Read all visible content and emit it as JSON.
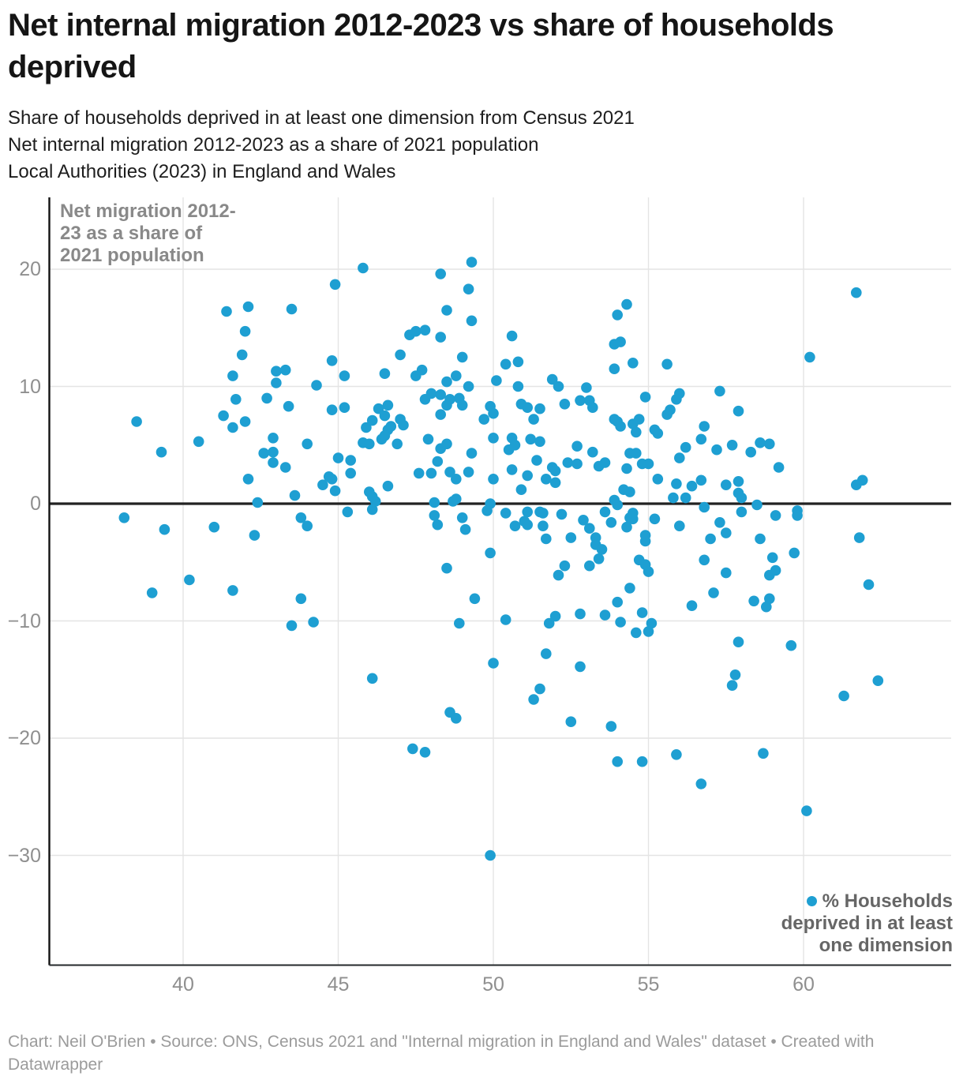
{
  "header": {
    "title": "Net internal migration 2012-2023 vs share of households deprived",
    "subtitle_lines": [
      "Share of households deprived in at least one dimension from Census 2021",
      "Net internal migration 2012-2023 as a share of 2021 population",
      "Local Authorities (2023) in England and Wales"
    ]
  },
  "chart_data": {
    "type": "scatter",
    "title": "Net internal migration 2012-2023 vs share of households deprived",
    "xlabel": "% Households deprived in at least one dimension",
    "ylabel": "Net migration 2012-23 as a share of 2021 population",
    "x_ticks": [
      40,
      45,
      50,
      55,
      60
    ],
    "y_ticks": [
      20,
      10,
      0,
      -10,
      -20,
      -30
    ],
    "xlim": [
      35.7,
      64.7
    ],
    "ylim": [
      -39.5,
      26.2
    ],
    "grid": true,
    "zero_line": true,
    "annotation_lines": [
      "Net migration 2012-",
      "23 as a share of",
      "2021 population"
    ],
    "legend": {
      "position": "bottom-right",
      "label_lines": [
        "% Households",
        "deprived in at least",
        "one dimension"
      ]
    },
    "point_color": "#1e9fd2",
    "points": [
      [
        41.4,
        16.4
      ],
      [
        42.1,
        16.8
      ],
      [
        42.0,
        14.7
      ],
      [
        41.9,
        12.7
      ],
      [
        41.6,
        10.9
      ],
      [
        45.8,
        20.1
      ],
      [
        48.3,
        19.6
      ],
      [
        49.3,
        20.6
      ],
      [
        44.9,
        18.7
      ],
      [
        49.2,
        18.3
      ],
      [
        43.5,
        16.6
      ],
      [
        48.5,
        16.5
      ],
      [
        49.3,
        15.6
      ],
      [
        47.3,
        14.4
      ],
      [
        47.5,
        14.7
      ],
      [
        47.8,
        14.8
      ],
      [
        48.3,
        14.2
      ],
      [
        47.0,
        12.7
      ],
      [
        49.0,
        12.5
      ],
      [
        44.8,
        12.2
      ],
      [
        43.3,
        11.4
      ],
      [
        43.0,
        11.3
      ],
      [
        47.7,
        11.4
      ],
      [
        47.5,
        10.9
      ],
      [
        46.5,
        11.1
      ],
      [
        45.2,
        10.9
      ],
      [
        48.8,
        10.9
      ],
      [
        43.0,
        10.3
      ],
      [
        44.3,
        10.1
      ],
      [
        48.5,
        10.4
      ],
      [
        49.2,
        10.0
      ],
      [
        54.3,
        17.0
      ],
      [
        54.0,
        16.1
      ],
      [
        50.6,
        14.3
      ],
      [
        53.9,
        13.6
      ],
      [
        54.1,
        13.8
      ],
      [
        50.4,
        11.9
      ],
      [
        50.8,
        12.1
      ],
      [
        53.9,
        11.5
      ],
      [
        54.5,
        12.0
      ],
      [
        55.6,
        11.9
      ],
      [
        51.9,
        10.6
      ],
      [
        50.8,
        10.0
      ],
      [
        52.1,
        10.0
      ],
      [
        53.0,
        9.9
      ],
      [
        50.1,
        10.5
      ],
      [
        61.7,
        18.0
      ],
      [
        60.2,
        12.5
      ],
      [
        57.3,
        9.6
      ],
      [
        38.5,
        7.0
      ],
      [
        39.3,
        4.4
      ],
      [
        40.5,
        5.3
      ],
      [
        41.7,
        8.9
      ],
      [
        41.3,
        7.5
      ],
      [
        42.0,
        7.0
      ],
      [
        41.6,
        6.5
      ],
      [
        42.7,
        9.0
      ],
      [
        42.9,
        5.6
      ],
      [
        42.6,
        4.3
      ],
      [
        42.9,
        4.4
      ],
      [
        42.9,
        3.5
      ],
      [
        42.1,
        2.1
      ],
      [
        42.4,
        0.1
      ],
      [
        38.1,
        -1.2
      ],
      [
        39.4,
        -2.2
      ],
      [
        41.0,
        -2.0
      ],
      [
        42.3,
        -2.7
      ],
      [
        40.2,
        -6.5
      ],
      [
        43.4,
        8.3
      ],
      [
        44.8,
        8.0
      ],
      [
        45.2,
        8.2
      ],
      [
        43.3,
        3.1
      ],
      [
        44.0,
        5.1
      ],
      [
        45.9,
        6.5
      ],
      [
        46.1,
        7.1
      ],
      [
        45.8,
        5.2
      ],
      [
        46.0,
        5.1
      ],
      [
        46.3,
        8.1
      ],
      [
        46.6,
        8.4
      ],
      [
        46.5,
        7.5
      ],
      [
        46.6,
        6.3
      ],
      [
        46.7,
        6.6
      ],
      [
        46.4,
        5.5
      ],
      [
        46.5,
        5.8
      ],
      [
        47.0,
        7.2
      ],
      [
        47.1,
        6.7
      ],
      [
        46.9,
        5.1
      ],
      [
        47.8,
        8.9
      ],
      [
        48.0,
        9.4
      ],
      [
        48.3,
        9.3
      ],
      [
        48.5,
        8.4
      ],
      [
        48.6,
        8.9
      ],
      [
        48.3,
        7.6
      ],
      [
        48.9,
        9.0
      ],
      [
        49.0,
        8.4
      ],
      [
        47.9,
        5.5
      ],
      [
        48.3,
        4.7
      ],
      [
        48.5,
        5.1
      ],
      [
        49.3,
        4.3
      ],
      [
        48.2,
        3.6
      ],
      [
        47.6,
        2.6
      ],
      [
        48.0,
        2.6
      ],
      [
        48.6,
        2.7
      ],
      [
        48.8,
        2.1
      ],
      [
        49.2,
        2.7
      ],
      [
        46.6,
        1.5
      ],
      [
        46.0,
        1.0
      ],
      [
        46.1,
        0.6
      ],
      [
        46.2,
        0.2
      ],
      [
        43.6,
        0.7
      ],
      [
        44.5,
        1.6
      ],
      [
        44.7,
        2.3
      ],
      [
        44.8,
        2.1
      ],
      [
        44.9,
        1.1
      ],
      [
        45.0,
        3.9
      ],
      [
        45.4,
        3.7
      ],
      [
        45.4,
        2.6
      ],
      [
        48.1,
        0.1
      ],
      [
        48.7,
        0.2
      ],
      [
        48.8,
        0.4
      ],
      [
        49.9,
        0.0
      ],
      [
        45.3,
        -0.7
      ],
      [
        46.1,
        -0.5
      ],
      [
        43.8,
        -1.2
      ],
      [
        44.0,
        -1.9
      ],
      [
        48.1,
        -1.0
      ],
      [
        48.2,
        -1.8
      ],
      [
        49.0,
        -1.2
      ],
      [
        49.1,
        -2.2
      ],
      [
        49.8,
        -0.6
      ],
      [
        49.9,
        -4.2
      ],
      [
        48.5,
        -5.5
      ],
      [
        49.9,
        8.3
      ],
      [
        50.0,
        7.7
      ],
      [
        50.0,
        5.6
      ],
      [
        49.7,
        7.2
      ],
      [
        50.0,
        2.1
      ],
      [
        54.9,
        9.1
      ],
      [
        56.0,
        9.4
      ],
      [
        55.9,
        8.9
      ],
      [
        50.9,
        8.5
      ],
      [
        51.1,
        8.2
      ],
      [
        51.5,
        8.1
      ],
      [
        52.3,
        8.5
      ],
      [
        52.8,
        8.8
      ],
      [
        53.1,
        8.8
      ],
      [
        53.2,
        8.2
      ],
      [
        51.3,
        7.2
      ],
      [
        53.9,
        7.2
      ],
      [
        54.0,
        7.0
      ],
      [
        54.1,
        6.6
      ],
      [
        54.5,
        6.8
      ],
      [
        54.7,
        7.2
      ],
      [
        54.6,
        6.1
      ],
      [
        55.2,
        6.3
      ],
      [
        55.3,
        6.0
      ],
      [
        55.6,
        7.6
      ],
      [
        55.7,
        8.0
      ],
      [
        50.6,
        5.6
      ],
      [
        50.7,
        5.0
      ],
      [
        50.5,
        4.6
      ],
      [
        51.2,
        5.5
      ],
      [
        51.5,
        5.3
      ],
      [
        51.4,
        3.7
      ],
      [
        52.7,
        4.9
      ],
      [
        53.2,
        4.4
      ],
      [
        52.4,
        3.5
      ],
      [
        52.7,
        3.4
      ],
      [
        51.9,
        3.1
      ],
      [
        52.0,
        2.8
      ],
      [
        53.4,
        3.2
      ],
      [
        53.6,
        3.5
      ],
      [
        50.6,
        2.9
      ],
      [
        51.1,
        2.4
      ],
      [
        51.7,
        2.1
      ],
      [
        52.0,
        1.8
      ],
      [
        50.9,
        1.2
      ],
      [
        54.3,
        3.0
      ],
      [
        54.4,
        4.3
      ],
      [
        54.6,
        4.3
      ],
      [
        54.8,
        3.4
      ],
      [
        55.0,
        3.4
      ],
      [
        54.2,
        1.2
      ],
      [
        54.4,
        1.0
      ],
      [
        53.9,
        0.3
      ],
      [
        54.0,
        -0.1
      ],
      [
        55.3,
        2.1
      ],
      [
        55.8,
        0.5
      ],
      [
        55.9,
        1.7
      ],
      [
        56.2,
        0.5
      ],
      [
        56.4,
        1.5
      ],
      [
        56.7,
        2.0
      ],
      [
        56.8,
        6.6
      ],
      [
        56.7,
        5.5
      ],
      [
        56.2,
        4.8
      ],
      [
        56.0,
        3.9
      ],
      [
        57.2,
        4.6
      ],
      [
        56.8,
        -0.3
      ],
      [
        50.4,
        -0.8
      ],
      [
        51.1,
        -0.7
      ],
      [
        51.5,
        -0.7
      ],
      [
        51.6,
        -0.8
      ],
      [
        50.7,
        -1.9
      ],
      [
        51.0,
        -1.5
      ],
      [
        51.1,
        -1.8
      ],
      [
        51.6,
        -1.9
      ],
      [
        52.2,
        -0.9
      ],
      [
        52.9,
        -1.4
      ],
      [
        53.1,
        -2.1
      ],
      [
        51.7,
        -3.0
      ],
      [
        52.5,
        -2.9
      ],
      [
        53.6,
        -0.7
      ],
      [
        53.8,
        -1.6
      ],
      [
        53.3,
        -2.9
      ],
      [
        53.3,
        -3.5
      ],
      [
        53.5,
        -3.9
      ],
      [
        54.3,
        -2.0
      ],
      [
        54.4,
        -1.2
      ],
      [
        54.5,
        -1.3
      ],
      [
        54.5,
        -0.8
      ],
      [
        55.2,
        -1.3
      ],
      [
        54.9,
        -2.7
      ],
      [
        54.9,
        -3.2
      ],
      [
        54.7,
        -4.8
      ],
      [
        54.9,
        -5.2
      ],
      [
        55.0,
        -5.8
      ],
      [
        52.3,
        -5.3
      ],
      [
        52.1,
        -6.1
      ],
      [
        53.1,
        -5.3
      ],
      [
        53.4,
        -4.7
      ],
      [
        57.0,
        -3.0
      ],
      [
        56.8,
        -4.8
      ],
      [
        56.0,
        -1.9
      ],
      [
        57.3,
        -1.6
      ],
      [
        57.9,
        7.9
      ],
      [
        57.7,
        5.0
      ],
      [
        58.3,
        4.4
      ],
      [
        58.6,
        5.2
      ],
      [
        58.9,
        5.1
      ],
      [
        59.2,
        3.1
      ],
      [
        57.5,
        1.6
      ],
      [
        57.9,
        1.9
      ],
      [
        57.9,
        0.9
      ],
      [
        58.0,
        0.5
      ],
      [
        58.5,
        -0.1
      ],
      [
        61.7,
        1.6
      ],
      [
        61.9,
        2.0
      ],
      [
        58.0,
        -0.7
      ],
      [
        59.1,
        -1.0
      ],
      [
        59.8,
        -0.6
      ],
      [
        59.8,
        -1.0
      ],
      [
        57.5,
        -2.5
      ],
      [
        58.6,
        -3.0
      ],
      [
        61.8,
        -2.9
      ],
      [
        59.7,
        -4.2
      ],
      [
        59.0,
        -4.6
      ],
      [
        59.1,
        -5.7
      ],
      [
        58.9,
        -6.1
      ],
      [
        57.5,
        -5.9
      ],
      [
        39.0,
        -7.6
      ],
      [
        41.6,
        -7.4
      ],
      [
        43.8,
        -8.1
      ],
      [
        44.2,
        -10.1
      ],
      [
        43.5,
        -10.4
      ],
      [
        49.4,
        -8.1
      ],
      [
        48.9,
        -10.2
      ],
      [
        50.0,
        -13.6
      ],
      [
        46.1,
        -14.9
      ],
      [
        48.6,
        -17.8
      ],
      [
        48.8,
        -18.3
      ],
      [
        47.4,
        -20.9
      ],
      [
        47.8,
        -21.2
      ],
      [
        50.4,
        -9.9
      ],
      [
        51.8,
        -10.2
      ],
      [
        52.0,
        -9.6
      ],
      [
        52.8,
        -9.4
      ],
      [
        53.6,
        -9.5
      ],
      [
        54.0,
        -8.4
      ],
      [
        54.4,
        -7.2
      ],
      [
        54.1,
        -10.1
      ],
      [
        54.6,
        -11.0
      ],
      [
        54.8,
        -9.3
      ],
      [
        55.0,
        -10.9
      ],
      [
        55.1,
        -10.2
      ],
      [
        56.4,
        -8.7
      ],
      [
        57.1,
        -7.6
      ],
      [
        51.7,
        -12.8
      ],
      [
        52.8,
        -13.9
      ],
      [
        51.5,
        -15.8
      ],
      [
        51.3,
        -16.7
      ],
      [
        52.5,
        -18.6
      ],
      [
        53.8,
        -19.0
      ],
      [
        55.9,
        -21.4
      ],
      [
        54.0,
        -22.0
      ],
      [
        54.8,
        -22.0
      ],
      [
        58.4,
        -8.3
      ],
      [
        58.9,
        -8.1
      ],
      [
        58.8,
        -8.8
      ],
      [
        57.9,
        -11.8
      ],
      [
        59.6,
        -12.1
      ],
      [
        57.8,
        -14.6
      ],
      [
        57.7,
        -15.5
      ],
      [
        62.4,
        -15.1
      ],
      [
        61.3,
        -16.4
      ],
      [
        58.7,
        -21.3
      ],
      [
        62.1,
        -6.9
      ],
      [
        49.9,
        -30.0
      ],
      [
        56.7,
        -23.9
      ],
      [
        60.1,
        -26.2
      ]
    ]
  },
  "footer": {
    "credit": "Chart: Neil O'Brien • Source: ONS, Census 2021 and \"Internal migration in England and Wales\" dataset  • Created with Datawrapper"
  }
}
